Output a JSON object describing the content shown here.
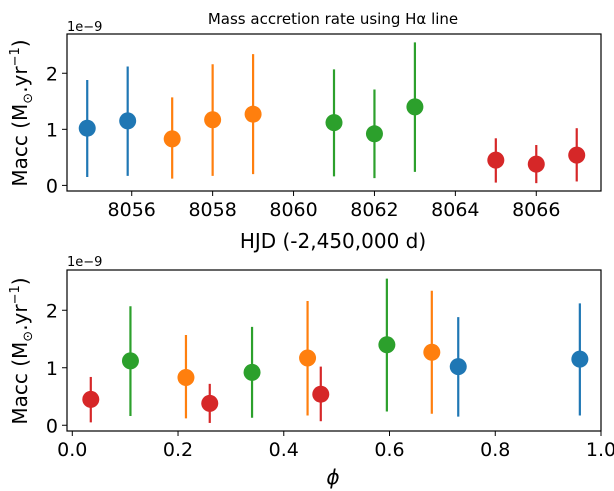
{
  "chart_data": [
    {
      "type": "scatter",
      "title": "Mass accretion rate using Hα line",
      "xlabel": "HJD (-2,450,000 d)",
      "ylabel_main": "Macc (M",
      "ylabel_sub": "⊙",
      "ylabel_tail": ".yr",
      "ylabel_sup": "−1",
      "ylabel_end": ")",
      "y_offset_label": "1e−9",
      "xlim": [
        8054.4,
        8067.6
      ],
      "ylim": [
        -0.1,
        2.7
      ],
      "xticks": [
        8056,
        8058,
        8060,
        8062,
        8064,
        8066
      ],
      "xtick_labels": [
        "8056",
        "8058",
        "8060",
        "8062",
        "8064",
        "8066"
      ],
      "yticks": [
        0,
        1,
        2
      ],
      "ytick_labels": [
        "0",
        "1",
        "2"
      ],
      "series": [
        {
          "color": "#1f77b4",
          "points": [
            {
              "x": 8054.9,
              "y": 1.02,
              "lo": 0.15,
              "hi": 1.88
            },
            {
              "x": 8055.9,
              "y": 1.15,
              "lo": 0.17,
              "hi": 2.12
            }
          ]
        },
        {
          "color": "#ff7f0e",
          "points": [
            {
              "x": 8057.0,
              "y": 0.83,
              "lo": 0.12,
              "hi": 1.57
            },
            {
              "x": 8058.0,
              "y": 1.17,
              "lo": 0.17,
              "hi": 2.16
            },
            {
              "x": 8059.0,
              "y": 1.27,
              "lo": 0.2,
              "hi": 2.34
            }
          ]
        },
        {
          "color": "#2ca02c",
          "points": [
            {
              "x": 8061.0,
              "y": 1.12,
              "lo": 0.16,
              "hi": 2.07
            },
            {
              "x": 8062.0,
              "y": 0.92,
              "lo": 0.13,
              "hi": 1.71
            },
            {
              "x": 8063.0,
              "y": 1.4,
              "lo": 0.24,
              "hi": 2.55
            }
          ]
        },
        {
          "color": "#d62728",
          "points": [
            {
              "x": 8065.0,
              "y": 0.45,
              "lo": 0.05,
              "hi": 0.84
            },
            {
              "x": 8066.0,
              "y": 0.38,
              "lo": 0.04,
              "hi": 0.72
            },
            {
              "x": 8067.0,
              "y": 0.54,
              "lo": 0.07,
              "hi": 1.02
            }
          ]
        }
      ]
    },
    {
      "type": "scatter",
      "xlabel": "ϕ",
      "ylabel_main": "Macc (M",
      "ylabel_sub": "⊙",
      "ylabel_tail": ".yr",
      "ylabel_sup": "−1",
      "ylabel_end": ")",
      "y_offset_label": "1e−9",
      "xlim": [
        -0.01,
        1.0
      ],
      "ylim": [
        -0.1,
        2.7
      ],
      "xticks": [
        0.0,
        0.2,
        0.4,
        0.6,
        0.8,
        1.0
      ],
      "xtick_labels": [
        "0.0",
        "0.2",
        "0.4",
        "0.6",
        "0.8",
        "1.0"
      ],
      "yticks": [
        0,
        1,
        2
      ],
      "ytick_labels": [
        "0",
        "1",
        "2"
      ],
      "series": [
        {
          "color": "#1f77b4",
          "points": [
            {
              "x": 0.73,
              "y": 1.02,
              "lo": 0.15,
              "hi": 1.88
            },
            {
              "x": 0.96,
              "y": 1.15,
              "lo": 0.17,
              "hi": 2.12
            }
          ]
        },
        {
          "color": "#ff7f0e",
          "points": [
            {
              "x": 0.215,
              "y": 0.83,
              "lo": 0.12,
              "hi": 1.57
            },
            {
              "x": 0.445,
              "y": 1.17,
              "lo": 0.17,
              "hi": 2.16
            },
            {
              "x": 0.68,
              "y": 1.27,
              "lo": 0.2,
              "hi": 2.34
            }
          ]
        },
        {
          "color": "#2ca02c",
          "points": [
            {
              "x": 0.11,
              "y": 1.12,
              "lo": 0.16,
              "hi": 2.07
            },
            {
              "x": 0.34,
              "y": 0.92,
              "lo": 0.13,
              "hi": 1.71
            },
            {
              "x": 0.595,
              "y": 1.4,
              "lo": 0.24,
              "hi": 2.55
            }
          ]
        },
        {
          "color": "#d62728",
          "points": [
            {
              "x": 0.035,
              "y": 0.45,
              "lo": 0.05,
              "hi": 0.84
            },
            {
              "x": 0.26,
              "y": 0.38,
              "lo": 0.04,
              "hi": 0.72
            },
            {
              "x": 0.47,
              "y": 0.54,
              "lo": 0.07,
              "hi": 1.02
            }
          ]
        }
      ]
    }
  ]
}
